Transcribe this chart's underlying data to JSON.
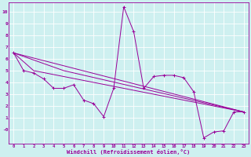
{
  "xlabel": "Windchill (Refroidissement éolien,°C)",
  "background_color": "#cef0f0",
  "line_color": "#990099",
  "grid_color": "#ffffff",
  "xlim": [
    -0.5,
    23.5
  ],
  "ylim": [
    -1.2,
    10.8
  ],
  "xticks": [
    0,
    1,
    2,
    3,
    4,
    5,
    6,
    7,
    8,
    9,
    10,
    11,
    12,
    13,
    14,
    15,
    16,
    17,
    18,
    19,
    20,
    21,
    22,
    23
  ],
  "yticks": [
    0,
    1,
    2,
    3,
    4,
    5,
    6,
    7,
    8,
    9,
    10
  ],
  "ytick_labels": [
    "-0",
    "1",
    "2",
    "3",
    "4",
    "5",
    "6",
    "7",
    "8",
    "9",
    "10"
  ],
  "line1": {
    "x": [
      0,
      1,
      2,
      3,
      4,
      5,
      6,
      7,
      8,
      9,
      10,
      11,
      12,
      13,
      14,
      15,
      16,
      17,
      18,
      19,
      20,
      21,
      22,
      23
    ],
    "y": [
      6.5,
      5.0,
      4.8,
      4.3,
      3.5,
      3.5,
      3.8,
      2.5,
      2.2,
      1.1,
      3.5,
      10.4,
      8.3,
      3.5,
      4.5,
      4.6,
      4.6,
      4.4,
      3.2,
      -0.7,
      -0.2,
      -0.1,
      1.5,
      1.5
    ]
  },
  "line2": {
    "x": [
      0,
      23
    ],
    "y": [
      6.5,
      1.5
    ]
  },
  "line3": {
    "comment": "line from x=0,y=6.5 through x=2,y=5 to x=23,y=1.5",
    "x": [
      0,
      2,
      23
    ],
    "y": [
      6.5,
      5.0,
      1.5
    ]
  },
  "line4": {
    "comment": "line from x=0,y=6.5 to x=5,y=5 to x=23,y=1.5",
    "x": [
      0,
      5,
      23
    ],
    "y": [
      6.5,
      5.0,
      1.5
    ]
  }
}
